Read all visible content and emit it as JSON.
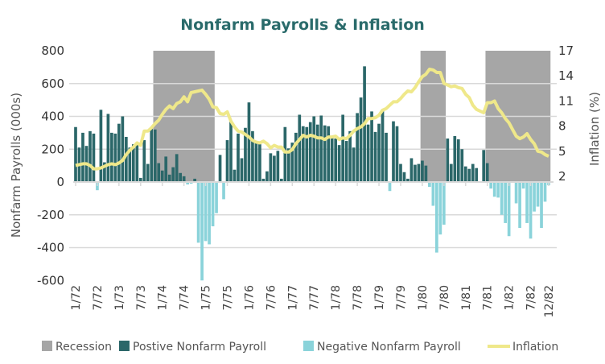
{
  "chart_data": {
    "type": "bar+line",
    "title": "Nonfarm Payrolls & Inflation",
    "ylabel_left": "Nonfarm Payrolls (000s)",
    "ylabel_right": "Inflation (%)",
    "ylim_left": [
      -600,
      800
    ],
    "ylim_right": [
      2,
      17
    ],
    "left_ticks": [
      "800",
      "600",
      "400",
      "200",
      "0",
      "-200",
      "-400",
      "-600"
    ],
    "right_ticks": [
      "17",
      "14",
      "11",
      "8",
      "5",
      "2"
    ],
    "x_tick_labels": [
      "1/72",
      "7/72",
      "1/73",
      "7/73",
      "1/74",
      "7/74",
      "1/75",
      "7/75",
      "1/76",
      "7/76",
      "1/77",
      "7/77",
      "1/78",
      "7/78",
      "1/79",
      "7/79",
      "1/80",
      "7/80",
      "1/81",
      "7/81",
      "1/82",
      "7/82",
      "12/82"
    ],
    "x_tick_month_index": [
      0,
      6,
      12,
      18,
      24,
      30,
      36,
      42,
      48,
      54,
      60,
      66,
      72,
      78,
      84,
      90,
      96,
      102,
      108,
      114,
      120,
      126,
      131
    ],
    "start": "1/72",
    "grid": true,
    "legend_position": "bottom",
    "legend": [
      "Recession",
      "Postive Nonfarm Payroll",
      "Negative Nonfarm Payroll",
      "Inflation"
    ],
    "colors": {
      "recession": "#a6a6a6",
      "positive": "#2b6769",
      "negative": "#8ad3da",
      "inflation": "#efe88a",
      "title": "#2a6b6b"
    },
    "recessions": [
      [
        22,
        38
      ],
      [
        96,
        102
      ],
      [
        114,
        131
      ]
    ],
    "payrolls": [
      335,
      210,
      300,
      220,
      310,
      295,
      -50,
      440,
      120,
      415,
      300,
      295,
      355,
      400,
      275,
      210,
      230,
      240,
      25,
      255,
      110,
      330,
      320,
      115,
      70,
      155,
      45,
      90,
      170,
      55,
      35,
      -15,
      -10,
      20,
      -370,
      -600,
      -360,
      -380,
      -270,
      -190,
      165,
      -105,
      255,
      370,
      75,
      295,
      145,
      330,
      485,
      310,
      250,
      230,
      20,
      65,
      175,
      160,
      190,
      20,
      335,
      205,
      240,
      300,
      410,
      340,
      335,
      365,
      400,
      350,
      405,
      345,
      340,
      280,
      265,
      225,
      410,
      250,
      310,
      210,
      420,
      515,
      705,
      350,
      430,
      305,
      355,
      440,
      300,
      -55,
      370,
      340,
      110,
      60,
      20,
      145,
      105,
      110,
      130,
      100,
      -30,
      -145,
      -430,
      -320,
      -260,
      265,
      110,
      280,
      260,
      200,
      95,
      80,
      110,
      85,
      5,
      195,
      115,
      -40,
      -90,
      -95,
      -200,
      -250,
      -330,
      -5,
      -130,
      -280,
      -40,
      -250,
      -345,
      -180,
      -150,
      -280,
      -120,
      -20
    ],
    "inflation": [
      3.3,
      3.4,
      3.5,
      3.5,
      3.3,
      2.9,
      2.9,
      3.0,
      3.2,
      3.4,
      3.5,
      3.4,
      3.6,
      3.9,
      4.6,
      5.1,
      5.5,
      6.0,
      5.7,
      7.4,
      7.4,
      7.8,
      8.3,
      8.7,
      9.4,
      10.0,
      10.4,
      10.1,
      10.7,
      10.9,
      11.5,
      10.9,
      12.0,
      12.1,
      12.2,
      12.3,
      11.8,
      11.2,
      10.3,
      10.2,
      9.5,
      9.4,
      9.7,
      8.6,
      7.9,
      7.4,
      7.3,
      7.0,
      6.7,
      6.3,
      6.1,
      6.0,
      6.2,
      5.9,
      5.4,
      5.7,
      5.5,
      5.5,
      4.9,
      4.9,
      5.2,
      5.9,
      6.4,
      6.9,
      6.7,
      6.9,
      6.8,
      6.6,
      6.6,
      6.4,
      6.7,
      6.7,
      6.8,
      6.4,
      6.6,
      6.5,
      6.9,
      7.4,
      7.7,
      7.9,
      8.3,
      8.9,
      8.9,
      9.0,
      9.3,
      9.9,
      10.1,
      10.5,
      10.9,
      10.9,
      11.3,
      11.8,
      12.2,
      12.1,
      12.6,
      13.3,
      13.9,
      14.2,
      14.8,
      14.7,
      14.4,
      14.4,
      13.1,
      12.9,
      12.7,
      12.8,
      12.6,
      12.5,
      11.8,
      11.4,
      10.5,
      10.0,
      9.8,
      9.6,
      10.8,
      10.8,
      11.0,
      10.1,
      9.6,
      8.9,
      8.4,
      7.6,
      6.8,
      6.5,
      6.7,
      7.1,
      6.4,
      5.9,
      5.0,
      4.9,
      4.6,
      4.4
    ]
  }
}
